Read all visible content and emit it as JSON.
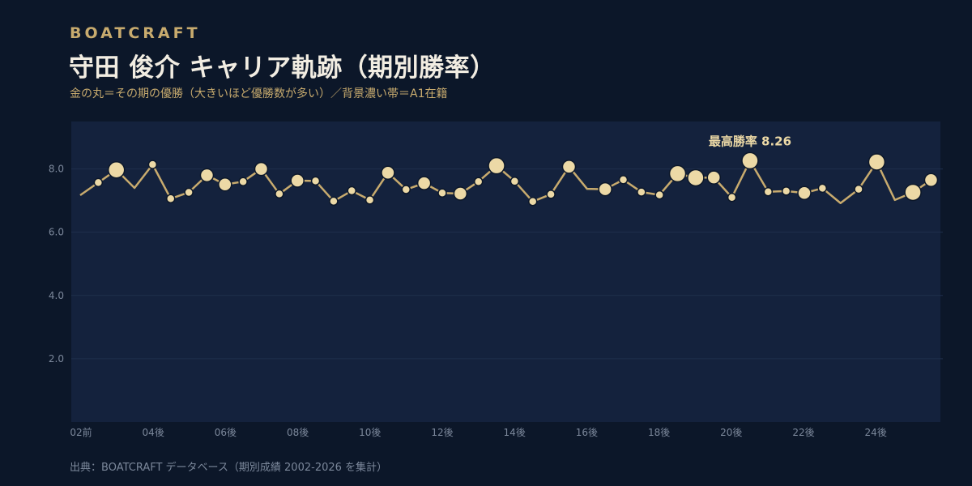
{
  "header": {
    "brand": "BOATCRAFT",
    "title": "守田 俊介  キャリア軌跡（期別勝率）",
    "subtitle": "金の丸＝その期の優勝（大きいほど優勝数が多い）／背景濃い帯＝A1在籍"
  },
  "footer": {
    "source": "出典：BOATCRAFT データベース（期別成績 2002-2026 を集計）"
  },
  "chart_data": {
    "type": "line",
    "title": "守田 俊介  キャリア軌跡（期別勝率）",
    "xlabel": "",
    "ylabel": "",
    "ylim": [
      0,
      9.5
    ],
    "y_ticks": [
      "2.0",
      "4.0",
      "6.0",
      "8.0"
    ],
    "x_tick_labels": [
      "02前",
      "04後",
      "06後",
      "08後",
      "10後",
      "12後",
      "14後",
      "16後",
      "18後",
      "20後",
      "22後",
      "24後"
    ],
    "peak_annotation": "最高勝率 8.26",
    "grid": true,
    "colors": {
      "line": "#c8ab6e",
      "marker": "#ecd9a6",
      "marker_stroke": "#0c1729",
      "plot_bg": "#14223d",
      "grid": "#1f2f4c"
    },
    "series": [
      {
        "x": [
          "02前",
          "02後",
          "03前",
          "03後",
          "04前",
          "04後",
          "05前",
          "05後",
          "06前",
          "06後",
          "07前",
          "07後",
          "08前",
          "08後",
          "09前",
          "09後",
          "10前",
          "10後",
          "11前",
          "11後",
          "12前",
          "12後",
          "13前",
          "13後",
          "14前",
          "14後",
          "15前",
          "15後",
          "16前",
          "16後",
          "17前",
          "17後",
          "18前",
          "18後",
          "19前",
          "19後",
          "20前",
          "20後",
          "21前",
          "21後",
          "22前",
          "22後",
          "23前",
          "23後",
          "24前",
          "24後",
          "25前",
          "25後"
        ],
        "values": [
          7.17,
          7.57,
          7.97,
          7.4,
          8.14,
          7.06,
          7.26,
          7.8,
          7.51,
          7.6,
          8.0,
          7.21,
          7.63,
          7.62,
          6.98,
          7.31,
          7.02,
          7.88,
          7.35,
          7.55,
          7.24,
          7.22,
          7.6,
          8.1,
          7.61,
          6.97,
          7.2,
          8.07,
          7.37,
          7.36,
          7.66,
          7.27,
          7.18,
          7.85,
          7.72,
          7.73,
          7.1,
          8.26,
          7.28,
          7.3,
          7.24,
          7.39,
          6.92,
          7.36,
          8.22,
          7.02,
          7.26,
          7.65
        ],
        "wins": [
          0,
          1,
          3,
          0,
          1,
          1,
          1,
          2,
          2,
          1,
          2,
          1,
          2,
          1,
          1,
          1,
          1,
          2,
          1,
          2,
          1,
          2,
          1,
          3,
          1,
          1,
          1,
          2,
          0,
          2,
          1,
          1,
          1,
          3,
          3,
          2,
          1,
          3,
          1,
          1,
          2,
          1,
          0,
          1,
          3,
          0,
          3,
          2
        ]
      }
    ]
  }
}
